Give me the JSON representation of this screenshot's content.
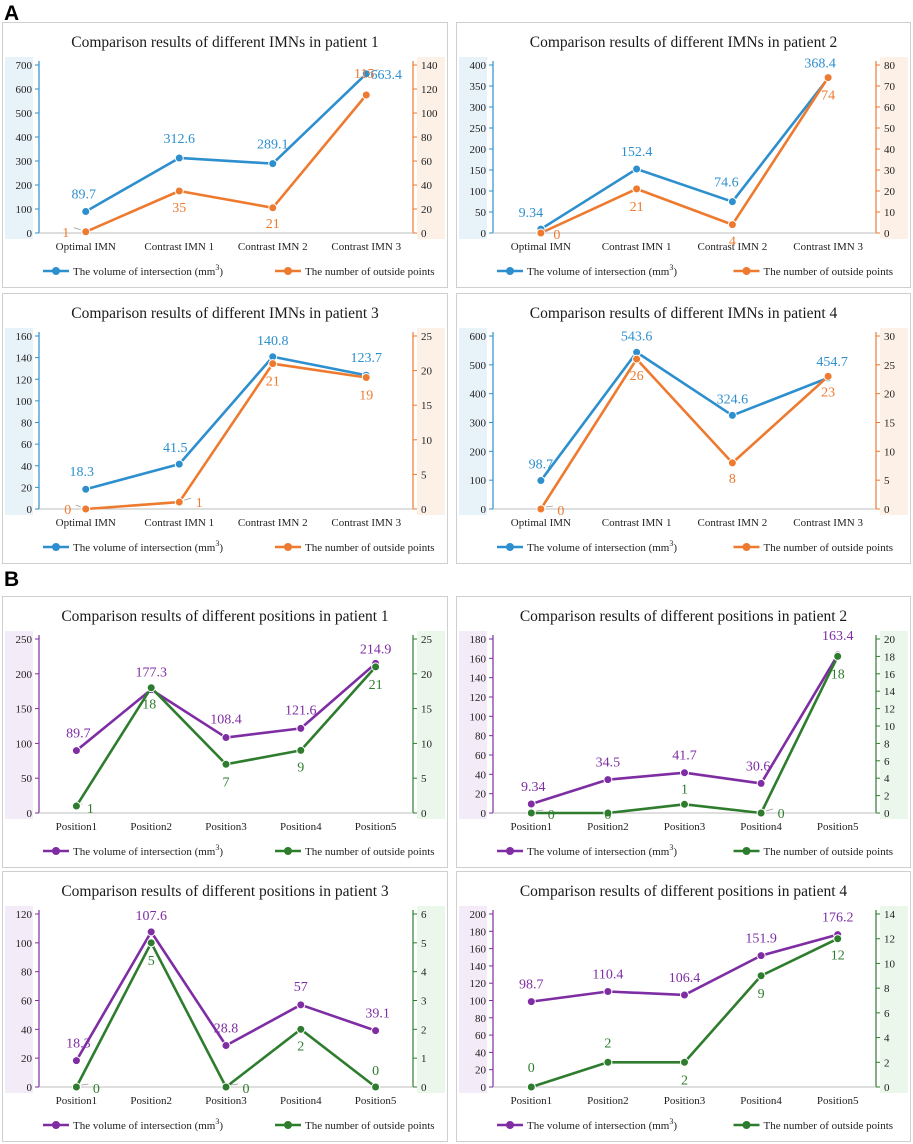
{
  "sections": {
    "a": "A",
    "b": "B"
  },
  "legend": {
    "volume_prefix": "The volume of intersection",
    "volume_unit": "(mm",
    "volume_sup": "3",
    "volume_close": ")",
    "outside": "The number of outside points"
  },
  "colors": {
    "blue": "#2e8fce",
    "orange": "#ee7a2f",
    "purple": "#7e2da3",
    "green": "#2e7d2e",
    "blue_band": "#bcd9ee",
    "orange_band": "#f6d3bb",
    "purple_band": "#dcc5ea",
    "green_band": "#c7e7c3"
  },
  "chart_data": [
    {
      "type": "line",
      "title": "Comparison results of different IMNs in patient 1",
      "categories": [
        "Optimal IMN",
        "Contrast IMN 1",
        "Contrast IMN 2",
        "Contrast IMN 3"
      ],
      "series": [
        {
          "name": "The volume of intersection (mm3)",
          "axis": "left",
          "color": "blue",
          "values": [
            89.7,
            312.6,
            289.1,
            663.4
          ],
          "labels": [
            "89.7",
            "312.6",
            "289.1",
            "663.4"
          ]
        },
        {
          "name": "The number of outside points",
          "axis": "right",
          "color": "orange",
          "values": [
            1,
            35,
            21,
            115
          ],
          "labels": [
            "1",
            "35",
            "21",
            "115"
          ]
        }
      ],
      "yleft": {
        "min": 0,
        "max": 700,
        "step": 100
      },
      "yright": {
        "min": 0,
        "max": 140,
        "step": 20
      }
    },
    {
      "type": "line",
      "title": "Comparison results of different IMNs in patient 2",
      "categories": [
        "Optimal IMN",
        "Contrast IMN 1",
        "Contrast IMN 2",
        "Contrast IMN 3"
      ],
      "series": [
        {
          "name": "The volume of intersection (mm3)",
          "axis": "left",
          "color": "blue",
          "values": [
            9.34,
            152.4,
            74.6,
            368.4
          ],
          "labels": [
            "9.34",
            "152.4",
            "74.6",
            "368.4"
          ]
        },
        {
          "name": "The number of outside points",
          "axis": "right",
          "color": "orange",
          "values": [
            0,
            21,
            4,
            74
          ],
          "labels": [
            "0",
            "21",
            "4",
            "74"
          ]
        }
      ],
      "yleft": {
        "min": 0,
        "max": 400,
        "step": 50
      },
      "yright": {
        "min": 0,
        "max": 80,
        "step": 10
      }
    },
    {
      "type": "line",
      "title": "Comparison results of different IMNs in patient 3",
      "categories": [
        "Optimal IMN",
        "Contrast IMN 1",
        "Contrast IMN 2",
        "Contrast IMN 3"
      ],
      "series": [
        {
          "name": "The volume of intersection (mm3)",
          "axis": "left",
          "color": "blue",
          "values": [
            18.3,
            41.5,
            140.8,
            123.7
          ],
          "labels": [
            "18.3",
            "41.5",
            "140.8",
            "123.7"
          ]
        },
        {
          "name": "The number of outside points",
          "axis": "right",
          "color": "orange",
          "values": [
            0,
            1,
            21,
            19
          ],
          "labels": [
            "0",
            "1",
            "21",
            "19"
          ]
        }
      ],
      "yleft": {
        "min": 0,
        "max": 160,
        "step": 20
      },
      "yright": {
        "min": 0,
        "max": 25,
        "step": 5
      }
    },
    {
      "type": "line",
      "title": "Comparison results of different IMNs in patient 4",
      "categories": [
        "Optimal IMN",
        "Contrast IMN 1",
        "Contrast IMN 2",
        "Contrast IMN 3"
      ],
      "series": [
        {
          "name": "The volume of intersection (mm3)",
          "axis": "left",
          "color": "blue",
          "values": [
            98.7,
            543.6,
            324.6,
            454.7
          ],
          "labels": [
            "98.7",
            "543.6",
            "324.6",
            "454.7"
          ]
        },
        {
          "name": "The number of outside points",
          "axis": "right",
          "color": "orange",
          "values": [
            0,
            26,
            8,
            23
          ],
          "labels": [
            "0",
            "26",
            "8",
            "23"
          ]
        }
      ],
      "yleft": {
        "min": 0,
        "max": 600,
        "step": 100
      },
      "yright": {
        "min": 0,
        "max": 30,
        "step": 5
      }
    },
    {
      "type": "line",
      "title": "Comparison results of different positions in patient 1",
      "categories": [
        "Position1",
        "Position2",
        "Position3",
        "Position4",
        "Position5"
      ],
      "series": [
        {
          "name": "The volume of intersection (mm3)",
          "axis": "left",
          "color": "purple",
          "values": [
            89.7,
            177.3,
            108.4,
            121.6,
            214.9
          ],
          "labels": [
            "89.7",
            "177.3",
            "108.4",
            "121.6",
            "214.9"
          ]
        },
        {
          "name": "The number of outside points",
          "axis": "right",
          "color": "green",
          "values": [
            1,
            18,
            7,
            9,
            21
          ],
          "labels": [
            "1",
            "18",
            "7",
            "9",
            "21"
          ]
        }
      ],
      "yleft": {
        "min": 0,
        "max": 250,
        "step": 50
      },
      "yright": {
        "min": 0,
        "max": 25,
        "step": 5
      }
    },
    {
      "type": "line",
      "title": "Comparison results of different positions in patient 2",
      "categories": [
        "Position1",
        "Position2",
        "Position3",
        "Position4",
        "Position5"
      ],
      "series": [
        {
          "name": "The volume of intersection (mm3)",
          "axis": "left",
          "color": "purple",
          "values": [
            9.34,
            34.5,
            41.7,
            30.6,
            163.4
          ],
          "labels": [
            "9.34",
            "34.5",
            "41.7",
            "30.6",
            "163.4"
          ]
        },
        {
          "name": "The number of outside points",
          "axis": "right",
          "color": "green",
          "values": [
            0,
            0,
            1,
            0,
            18
          ],
          "labels": [
            "0",
            "0",
            "1",
            "0",
            "18"
          ]
        }
      ],
      "yleft": {
        "min": 0,
        "max": 180,
        "step": 20
      },
      "yright": {
        "min": 0,
        "max": 20,
        "step": 2
      }
    },
    {
      "type": "line",
      "title": "Comparison results of different positions in patient 3",
      "categories": [
        "Position1",
        "Position2",
        "Position3",
        "Position4",
        "Position5"
      ],
      "series": [
        {
          "name": "The volume of intersection (mm3)",
          "axis": "left",
          "color": "purple",
          "values": [
            18.3,
            107.6,
            28.8,
            57,
            39.1
          ],
          "labels": [
            "18.3",
            "107.6",
            "28.8",
            "57",
            "39.1"
          ]
        },
        {
          "name": "The number of outside points",
          "axis": "right",
          "color": "green",
          "values": [
            0,
            5,
            0,
            2,
            0
          ],
          "labels": [
            "0",
            "5",
            "0",
            "2",
            "0"
          ]
        }
      ],
      "yleft": {
        "min": 0,
        "max": 120,
        "step": 20
      },
      "yright": {
        "min": 0,
        "max": 6,
        "step": 1
      }
    },
    {
      "type": "line",
      "title": "Comparison results of different positions in patient 4",
      "categories": [
        "Position1",
        "Position2",
        "Position3",
        "Position4",
        "Position5"
      ],
      "series": [
        {
          "name": "The volume of intersection (mm3)",
          "axis": "left",
          "color": "purple",
          "values": [
            98.7,
            110.4,
            106.4,
            151.9,
            176.2
          ],
          "labels": [
            "98.7",
            "110.4",
            "106.4",
            "151.9",
            "176.2"
          ]
        },
        {
          "name": "The number of outside points",
          "axis": "right",
          "color": "green",
          "values": [
            0,
            2,
            2,
            9,
            12
          ],
          "labels": [
            "0",
            "2",
            "2",
            "9",
            "12"
          ]
        }
      ],
      "yleft": {
        "min": 0,
        "max": 200,
        "step": 20
      },
      "yright": {
        "min": 0,
        "max": 14,
        "step": 2
      }
    }
  ]
}
